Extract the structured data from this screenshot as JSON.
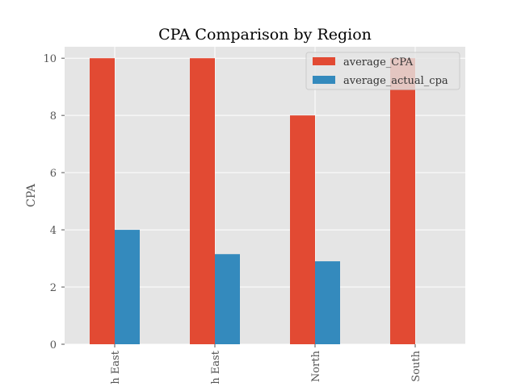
{
  "chart_data": {
    "type": "bar",
    "title": "CPA Comparison by Region",
    "xlabel": "",
    "ylabel": "CPA",
    "categories": [
      "North East",
      "North East",
      "North",
      "South"
    ],
    "category_labels_visible": [
      "h East",
      "h East",
      "North",
      "South"
    ],
    "series": [
      {
        "name": "average_CPA",
        "color": "#E24A33",
        "values": [
          10,
          10,
          8,
          10
        ]
      },
      {
        "name": "average_actual_cpa",
        "color": "#348ABD",
        "values": [
          4,
          3.15,
          2.9,
          0
        ]
      }
    ],
    "ylim": [
      0,
      10.4
    ],
    "yticks": [
      0,
      2,
      4,
      6,
      8,
      10
    ],
    "grid": true,
    "legend_position": "top-right",
    "style": {
      "background": "#E5E5E5",
      "grid_color": "#FFFFFF"
    }
  }
}
